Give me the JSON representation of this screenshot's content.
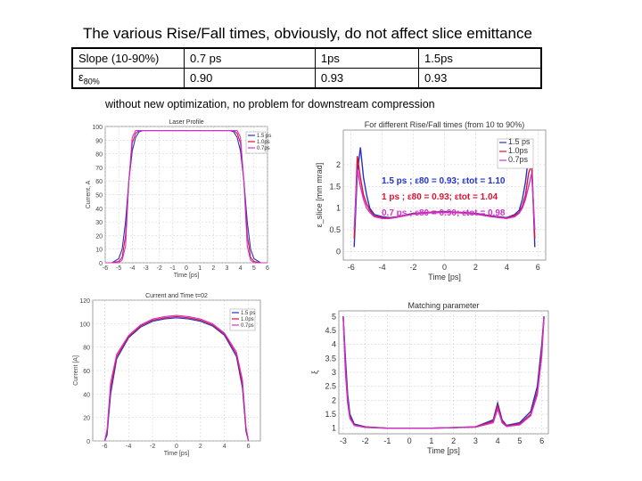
{
  "title": "The various Rise/Fall times, obviously, do not affect slice emittance",
  "table": {
    "row1": {
      "label": "Slope (10-90%)",
      "values": [
        "0.7 ps",
        "1ps",
        "1.5ps"
      ]
    },
    "row2": {
      "label_main": "ε",
      "label_sub": "80%",
      "values": [
        "0.90",
        "0.93",
        "0.93"
      ]
    }
  },
  "note": "without new optimization, no problem for downstream compression",
  "colors": {
    "s15": "#2233cc",
    "s10": "#dd1133",
    "s07": "#cc33cc"
  },
  "chart_data": [
    {
      "type": "line",
      "title": "Laser Profile",
      "xlabel": "Time [ps]",
      "ylabel": "Current, A",
      "xlim": [
        -6,
        6
      ],
      "ylim": [
        0,
        100
      ],
      "xticks": [
        "-6",
        "-5",
        "-4",
        "-3",
        "-2",
        "-1",
        "0",
        "1",
        "2",
        "3",
        "4",
        "5",
        "6"
      ],
      "yticks": [
        "0",
        "10",
        "20",
        "30",
        "40",
        "50",
        "60",
        "70",
        "80",
        "90",
        "100"
      ],
      "legend": [
        "1.5 ps",
        "1.0ps",
        "0.7ps"
      ],
      "series": [
        {
          "name": "1.5 ps",
          "color": "#2233cc",
          "x": [
            -6,
            -5.5,
            -5.0,
            -4.75,
            -4.5,
            -4.25,
            -4.0,
            -3.75,
            -3.5,
            -3.25,
            -3.0,
            3.0,
            3.25,
            3.5,
            3.75,
            4.0,
            4.25,
            4.5,
            4.75,
            5.0,
            5.5,
            6
          ],
          "y": [
            0,
            0,
            3,
            10,
            30,
            60,
            82,
            92,
            96,
            97,
            97,
            97,
            97,
            96,
            92,
            82,
            60,
            30,
            10,
            3,
            0,
            0
          ]
        },
        {
          "name": "1.0ps",
          "color": "#dd1133",
          "x": [
            -6,
            -5.5,
            -5.0,
            -4.75,
            -4.5,
            -4.25,
            -4.0,
            -3.75,
            -3.5,
            -3.25,
            -3.0,
            3.0,
            3.25,
            3.5,
            3.75,
            4.0,
            4.25,
            4.5,
            4.75,
            5.0,
            5.5,
            6
          ],
          "y": [
            0,
            0,
            1,
            4,
            20,
            60,
            88,
            95,
            97,
            97,
            97,
            97,
            97,
            97,
            95,
            88,
            60,
            20,
            4,
            1,
            0,
            0
          ]
        },
        {
          "name": "0.7ps",
          "color": "#cc33cc",
          "x": [
            -6,
            -5.5,
            -5.0,
            -4.75,
            -4.5,
            -4.25,
            -4.0,
            -3.75,
            -3.5,
            -3.25,
            -3.0,
            3.0,
            3.25,
            3.5,
            3.75,
            4.0,
            4.25,
            4.5,
            4.75,
            5.0,
            5.5,
            6
          ],
          "y": [
            0,
            0,
            0,
            2,
            12,
            60,
            92,
            97,
            97,
            97,
            97,
            97,
            97,
            97,
            97,
            92,
            60,
            12,
            2,
            0,
            0,
            0
          ]
        }
      ]
    },
    {
      "type": "line",
      "title": "For different Rise/Fall times (from 10 to 90%)",
      "xlabel": "Time [ps]",
      "ylabel": "ε_slice [mm mrad]",
      "xlim": [
        -6.5,
        6.5
      ],
      "ylim": [
        -0.2,
        2.8
      ],
      "xticks": [
        "-6",
        "-4",
        "-2",
        "0",
        "2",
        "4",
        "6"
      ],
      "yticks": [
        "0",
        "0.5",
        "1",
        "1.5",
        "2"
      ],
      "legend": [
        "1.5 ps",
        "1.0ps",
        "0.7ps"
      ],
      "annotations": [
        {
          "text": "1.5 ps ; ε80 = 0.93; εtot = 1.10",
          "color": "#2233cc"
        },
        {
          "text": "1 ps ; ε80 = 0.93; εtot = 1.04",
          "color": "#dd1133"
        },
        {
          "text": "0.7 ps ; ε80 = 0.90; εtot = 0.98",
          "color": "#cc33cc"
        }
      ],
      "series": [
        {
          "name": "1.5 ps",
          "color": "#2233cc",
          "x": [
            -5.8,
            -5.6,
            -5.4,
            -5.2,
            -5.0,
            -4.8,
            -4.5,
            -4.0,
            -3.5,
            -3.0,
            -2.0,
            -1.0,
            0.0,
            1.0,
            2.0,
            3.0,
            3.5,
            4.0,
            4.5,
            4.8,
            5.0,
            5.2,
            5.4,
            5.6,
            5.8
          ],
          "y": [
            0.1,
            1.8,
            2.4,
            1.7,
            1.3,
            1.0,
            0.85,
            0.8,
            0.78,
            0.8,
            0.88,
            0.9,
            0.92,
            0.9,
            0.88,
            0.82,
            0.8,
            0.78,
            0.85,
            0.95,
            1.2,
            1.6,
            2.2,
            2.1,
            0.1
          ]
        },
        {
          "name": "1.0ps",
          "color": "#dd1133",
          "x": [
            -5.8,
            -5.6,
            -5.4,
            -5.2,
            -5.0,
            -4.8,
            -4.5,
            -4.0,
            -3.5,
            -3.0,
            -2.0,
            -1.0,
            0.0,
            1.0,
            2.0,
            3.0,
            3.5,
            4.0,
            4.5,
            4.8,
            5.0,
            5.2,
            5.4,
            5.6,
            5.8
          ],
          "y": [
            0.3,
            2.2,
            1.7,
            1.3,
            1.1,
            0.95,
            0.82,
            0.78,
            0.77,
            0.8,
            0.87,
            0.9,
            0.91,
            0.9,
            0.87,
            0.81,
            0.79,
            0.77,
            0.83,
            0.9,
            1.05,
            1.3,
            1.8,
            2.0,
            0.3
          ]
        },
        {
          "name": "0.7ps",
          "color": "#cc33cc",
          "x": [
            -5.8,
            -5.6,
            -5.4,
            -5.2,
            -5.0,
            -4.8,
            -4.5,
            -4.0,
            -3.5,
            -3.0,
            -2.0,
            -1.0,
            0.0,
            1.0,
            2.0,
            3.0,
            3.5,
            4.0,
            4.5,
            4.8,
            5.0,
            5.2,
            5.4,
            5.6,
            5.8
          ],
          "y": [
            0.5,
            1.9,
            1.5,
            1.2,
            1.0,
            0.9,
            0.8,
            0.76,
            0.76,
            0.79,
            0.86,
            0.89,
            0.9,
            0.89,
            0.86,
            0.8,
            0.78,
            0.76,
            0.8,
            0.88,
            1.0,
            1.2,
            1.5,
            1.8,
            0.5
          ]
        }
      ]
    },
    {
      "type": "line",
      "title": "Current and Time t=02",
      "xlabel": "Time [ps]",
      "ylabel": "Current [A]",
      "xlim": [
        -7,
        7
      ],
      "ylim": [
        0,
        120
      ],
      "xticks": [
        "-6",
        "-4",
        "-2",
        "0",
        "2",
        "4",
        "6"
      ],
      "yticks": [
        "0",
        "20",
        "40",
        "60",
        "80",
        "100",
        "120"
      ],
      "legend": [
        "1.5 ps",
        "1.0ps",
        "0.7ps"
      ],
      "series": [
        {
          "name": "1.5 ps",
          "color": "#2233cc",
          "x": [
            -6.0,
            -5.8,
            -5.5,
            -5.0,
            -4.0,
            -3.0,
            -2.0,
            -1.0,
            0.0,
            1.0,
            2.0,
            3.0,
            4.0,
            5.0,
            5.5,
            5.8,
            6.0
          ],
          "y": [
            0,
            5,
            40,
            70,
            88,
            97,
            102,
            104,
            105,
            104,
            102,
            98,
            90,
            72,
            45,
            8,
            0
          ]
        },
        {
          "name": "1.0ps",
          "color": "#dd1133",
          "x": [
            -6.0,
            -5.8,
            -5.5,
            -5.0,
            -4.0,
            -3.0,
            -2.0,
            -1.0,
            0.0,
            1.0,
            2.0,
            3.0,
            4.0,
            5.0,
            5.5,
            5.8,
            6.0
          ],
          "y": [
            0,
            8,
            45,
            72,
            89,
            98,
            103,
            105,
            106,
            105,
            103,
            99,
            91,
            74,
            48,
            10,
            0
          ]
        },
        {
          "name": "0.7ps",
          "color": "#cc33cc",
          "x": [
            -6.0,
            -5.8,
            -5.5,
            -5.0,
            -4.0,
            -3.0,
            -2.0,
            -1.0,
            0.0,
            1.0,
            2.0,
            3.0,
            4.0,
            5.0,
            5.5,
            5.8,
            6.0
          ],
          "y": [
            0,
            10,
            50,
            74,
            90,
            99,
            104,
            106,
            107,
            106,
            104,
            100,
            92,
            76,
            52,
            12,
            0
          ]
        }
      ]
    },
    {
      "type": "line",
      "title": "Matching parameter",
      "xlabel": "Time [ps]",
      "ylabel": "ξ",
      "xlim": [
        -3.2,
        6.3
      ],
      "ylim": [
        0.8,
        5.2
      ],
      "xticks": [
        "-3",
        "-2",
        "-1",
        "0",
        "1",
        "2",
        "3",
        "4",
        "5",
        "6"
      ],
      "yticks": [
        "1",
        "1.5",
        "2",
        "2.5",
        "3",
        "3.5",
        "4",
        "4.5",
        "5"
      ],
      "series": [
        {
          "name": "1.5 ps",
          "color": "#2233cc",
          "x": [
            -3.0,
            -2.9,
            -2.8,
            -2.7,
            -2.5,
            -2.0,
            -1.0,
            0.0,
            1.0,
            2.0,
            3.0,
            3.8,
            4.0,
            4.2,
            4.4,
            5.0,
            5.5,
            5.8,
            6.0,
            6.1
          ],
          "y": [
            5.0,
            3.5,
            2.2,
            1.5,
            1.15,
            1.05,
            1.0,
            1.0,
            1.0,
            1.02,
            1.05,
            1.3,
            1.9,
            1.3,
            1.1,
            1.2,
            1.6,
            2.5,
            4.0,
            5.0
          ]
        },
        {
          "name": "1.0ps",
          "color": "#dd1133",
          "x": [
            -3.0,
            -2.9,
            -2.8,
            -2.7,
            -2.5,
            -2.0,
            -1.0,
            0.0,
            1.0,
            2.0,
            3.0,
            3.8,
            4.0,
            4.2,
            4.4,
            5.0,
            5.5,
            5.8,
            6.0,
            6.1
          ],
          "y": [
            5.0,
            3.2,
            2.0,
            1.4,
            1.12,
            1.04,
            1.0,
            1.0,
            1.0,
            1.02,
            1.05,
            1.25,
            1.8,
            1.25,
            1.08,
            1.15,
            1.5,
            2.3,
            3.8,
            5.0
          ]
        },
        {
          "name": "0.7ps",
          "color": "#cc33cc",
          "x": [
            -3.0,
            -2.9,
            -2.8,
            -2.7,
            -2.5,
            -2.0,
            -1.0,
            0.0,
            1.0,
            2.0,
            3.0,
            3.8,
            4.0,
            4.2,
            4.4,
            5.0,
            5.5,
            5.8,
            6.0,
            6.1
          ],
          "y": [
            5.0,
            3.0,
            1.9,
            1.35,
            1.1,
            1.03,
            1.0,
            1.0,
            1.0,
            1.02,
            1.04,
            1.2,
            1.7,
            1.2,
            1.06,
            1.12,
            1.45,
            2.2,
            3.6,
            5.0
          ]
        }
      ]
    }
  ]
}
